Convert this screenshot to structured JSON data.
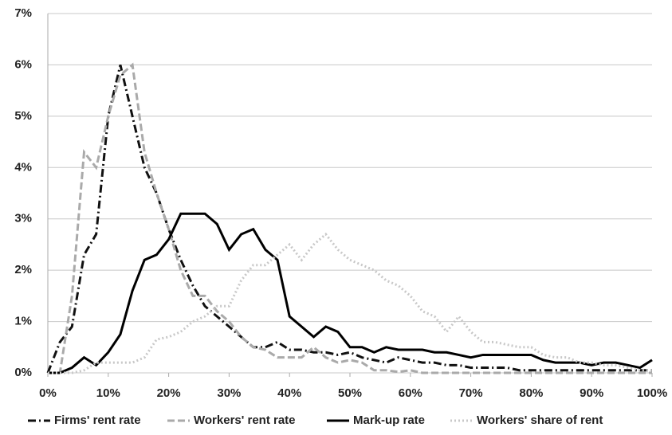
{
  "chart_data": {
    "type": "line",
    "x": [
      0,
      2,
      4,
      6,
      8,
      10,
      12,
      14,
      16,
      18,
      20,
      22,
      24,
      26,
      28,
      30,
      32,
      34,
      36,
      38,
      40,
      42,
      44,
      46,
      48,
      50,
      52,
      54,
      56,
      58,
      60,
      62,
      64,
      66,
      68,
      70,
      72,
      74,
      76,
      78,
      80,
      82,
      84,
      86,
      88,
      90,
      92,
      94,
      96,
      98,
      100
    ],
    "series": [
      {
        "name": "Firms' rent rate",
        "color": "#111111",
        "dash": "10,4,2,4",
        "values": [
          0,
          0.6,
          0.9,
          2.3,
          2.7,
          5.0,
          6.0,
          5.0,
          4.0,
          3.5,
          2.8,
          2.2,
          1.7,
          1.3,
          1.1,
          0.9,
          0.7,
          0.5,
          0.5,
          0.6,
          0.45,
          0.45,
          0.4,
          0.4,
          0.35,
          0.4,
          0.3,
          0.25,
          0.2,
          0.3,
          0.25,
          0.2,
          0.2,
          0.15,
          0.15,
          0.1,
          0.1,
          0.1,
          0.1,
          0.05,
          0.05,
          0.05,
          0.05,
          0.05,
          0.05,
          0.05,
          0.05,
          0.05,
          0.05,
          0.05,
          0.05
        ]
      },
      {
        "name": "Workers' rent rate",
        "color": "#aaaaaa",
        "dash": "9,4",
        "values": [
          0,
          0,
          1.5,
          4.3,
          4.0,
          5.0,
          5.8,
          6.0,
          4.3,
          3.5,
          2.8,
          2.0,
          1.5,
          1.5,
          1.2,
          1.0,
          0.7,
          0.5,
          0.45,
          0.3,
          0.3,
          0.3,
          0.5,
          0.3,
          0.2,
          0.25,
          0.2,
          0.05,
          0.05,
          0.02,
          0.05,
          0,
          0,
          0,
          0,
          0,
          0,
          0,
          0,
          0,
          0,
          0,
          0,
          0,
          0,
          0,
          0,
          0,
          0,
          0,
          0
        ]
      },
      {
        "name": "Mark-up rate",
        "color": "#000000",
        "dash": "",
        "values": [
          0,
          0,
          0.1,
          0.3,
          0.15,
          0.4,
          0.75,
          1.6,
          2.2,
          2.3,
          2.6,
          3.1,
          3.1,
          3.1,
          2.9,
          2.4,
          2.7,
          2.8,
          2.4,
          2.2,
          1.1,
          0.9,
          0.7,
          0.9,
          0.8,
          0.5,
          0.5,
          0.4,
          0.5,
          0.45,
          0.45,
          0.45,
          0.4,
          0.4,
          0.35,
          0.3,
          0.35,
          0.35,
          0.35,
          0.35,
          0.35,
          0.25,
          0.2,
          0.2,
          0.2,
          0.15,
          0.2,
          0.2,
          0.15,
          0.1,
          0.25
        ]
      },
      {
        "name": "Workers' share of rent",
        "color": "#c8c8c8",
        "dash": "2,3",
        "values": [
          0,
          0,
          0,
          0.05,
          0.2,
          0.2,
          0.2,
          0.2,
          0.3,
          0.65,
          0.7,
          0.8,
          1.0,
          1.1,
          1.3,
          1.3,
          1.8,
          2.1,
          2.1,
          2.3,
          2.5,
          2.2,
          2.5,
          2.7,
          2.4,
          2.2,
          2.1,
          2.0,
          1.8,
          1.7,
          1.5,
          1.2,
          1.1,
          0.8,
          1.1,
          0.8,
          0.6,
          0.6,
          0.55,
          0.5,
          0.5,
          0.35,
          0.3,
          0.3,
          0.2,
          0.2,
          0.15,
          0.15,
          0.1,
          0.05,
          0.05
        ]
      }
    ],
    "xlim": [
      0,
      100
    ],
    "xticks": [
      {
        "value": 0,
        "label": "0%"
      },
      {
        "value": 10,
        "label": "10%"
      },
      {
        "value": 20,
        "label": "20%"
      },
      {
        "value": 30,
        "label": "30%"
      },
      {
        "value": 40,
        "label": "40%"
      },
      {
        "value": 50,
        "label": "50%"
      },
      {
        "value": 60,
        "label": "60%"
      },
      {
        "value": 70,
        "label": "70%"
      },
      {
        "value": 80,
        "label": "80%"
      },
      {
        "value": 90,
        "label": "90%"
      },
      {
        "value": 100,
        "label": "100%"
      }
    ],
    "ylim": [
      0,
      7
    ],
    "yticks": [
      {
        "value": 0,
        "label": "0%"
      },
      {
        "value": 1,
        "label": "1%"
      },
      {
        "value": 2,
        "label": "2%"
      },
      {
        "value": 3,
        "label": "3%"
      },
      {
        "value": 4,
        "label": "4%"
      },
      {
        "value": 5,
        "label": "5%"
      },
      {
        "value": 6,
        "label": "6%"
      },
      {
        "value": 7,
        "label": "7%"
      }
    ],
    "grid": true,
    "legend": "bottom"
  }
}
